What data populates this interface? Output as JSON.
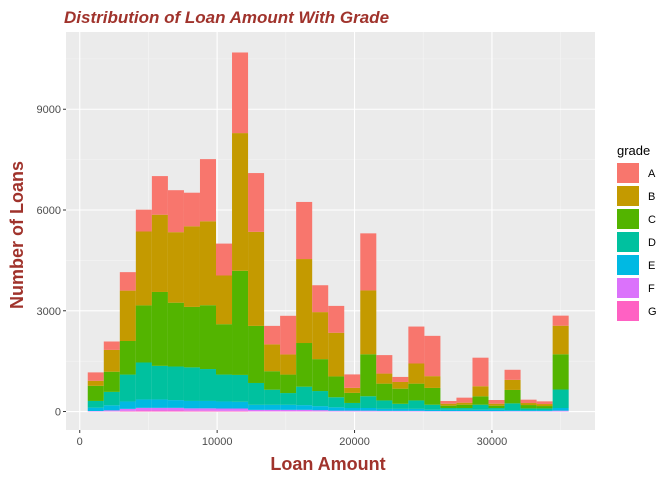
{
  "chart_data": {
    "type": "bar",
    "subtype": "stacked-histogram",
    "title": "Distribution of Loan Amount With Grade",
    "xlabel": "Loan Amount",
    "ylabel": "Number of Loans",
    "xlim": [
      -1000,
      37500
    ],
    "ylim": [
      -550,
      11300
    ],
    "x_ticks": [
      0,
      10000,
      20000,
      30000
    ],
    "x_tick_labels": [
      "0",
      "10000",
      "20000",
      "30000"
    ],
    "y_ticks": [
      0,
      3000,
      6000,
      9000
    ],
    "y_tick_labels": [
      "0",
      "3000",
      "6000",
      "9000"
    ],
    "bin_width": 1167,
    "bin_starts": [
      583,
      1750,
      2917,
      4083,
      5250,
      6417,
      7583,
      8750,
      9917,
      11083,
      12250,
      13417,
      14583,
      15750,
      16917,
      18083,
      19250,
      20417,
      21583,
      22750,
      23917,
      25083,
      26250,
      27417,
      28583,
      29750,
      30917,
      32083,
      33250,
      34417
    ],
    "legend_title": "grade",
    "legend_position": "right",
    "grid": true,
    "series": [
      {
        "name": "G",
        "color": "#FF61C3",
        "values": [
          5,
          10,
          20,
          30,
          30,
          30,
          25,
          25,
          20,
          20,
          10,
          10,
          10,
          10,
          10,
          5,
          5,
          5,
          5,
          5,
          5,
          3,
          3,
          3,
          3,
          3,
          3,
          3,
          3,
          5
        ]
      },
      {
        "name": "F",
        "color": "#DB72FB",
        "values": [
          10,
          25,
          60,
          80,
          80,
          80,
          70,
          70,
          70,
          70,
          40,
          40,
          40,
          40,
          30,
          20,
          20,
          20,
          15,
          15,
          15,
          10,
          10,
          10,
          10,
          10,
          10,
          10,
          10,
          20
        ]
      },
      {
        "name": "E",
        "color": "#00B9E3",
        "values": [
          100,
          150,
          220,
          250,
          250,
          230,
          220,
          220,
          210,
          200,
          150,
          150,
          150,
          140,
          120,
          100,
          80,
          80,
          60,
          60,
          60,
          40,
          40,
          40,
          40,
          40,
          30,
          30,
          30,
          80
        ]
      },
      {
        "name": "D",
        "color": "#00C19F",
        "values": [
          200,
          400,
          800,
          1100,
          1000,
          1000,
          1000,
          950,
          800,
          800,
          650,
          450,
          350,
          550,
          450,
          300,
          150,
          350,
          250,
          150,
          250,
          150,
          50,
          50,
          150,
          50,
          200,
          50,
          50,
          550
        ]
      },
      {
        "name": "C",
        "color": "#53B400",
        "values": [
          450,
          600,
          1000,
          1700,
          2200,
          1900,
          1800,
          1900,
          1500,
          3100,
          1700,
          550,
          550,
          1300,
          950,
          620,
          300,
          1250,
          500,
          450,
          500,
          500,
          70,
          100,
          250,
          70,
          400,
          100,
          70,
          1050
        ]
      },
      {
        "name": "B",
        "color": "#C49A00",
        "values": [
          150,
          650,
          1500,
          2200,
          2300,
          2100,
          2400,
          2500,
          1450,
          4100,
          2800,
          800,
          600,
          2500,
          1400,
          1300,
          150,
          1900,
          300,
          200,
          600,
          350,
          60,
          60,
          300,
          60,
          300,
          60,
          60,
          850
        ]
      },
      {
        "name": "A",
        "color": "#F8766D",
        "values": [
          250,
          250,
          550,
          650,
          1150,
          1250,
          1000,
          1850,
          950,
          2400,
          1750,
          550,
          1150,
          1700,
          800,
          800,
          400,
          1700,
          550,
          150,
          1100,
          1200,
          80,
          150,
          850,
          110,
          300,
          100,
          80,
          300
        ]
      }
    ],
    "legend_entries": [
      {
        "name": "A",
        "color": "#F8766D"
      },
      {
        "name": "B",
        "color": "#C49A00"
      },
      {
        "name": "C",
        "color": "#53B400"
      },
      {
        "name": "D",
        "color": "#00C19F"
      },
      {
        "name": "E",
        "color": "#00B9E3"
      },
      {
        "name": "F",
        "color": "#DB72FB"
      },
      {
        "name": "G",
        "color": "#FF61C3"
      }
    ],
    "colors": {
      "panel_bg": "#EBEBEB",
      "grid": "#FFFFFF",
      "title": "#A0332C",
      "tick": "#4D4D4D"
    }
  }
}
